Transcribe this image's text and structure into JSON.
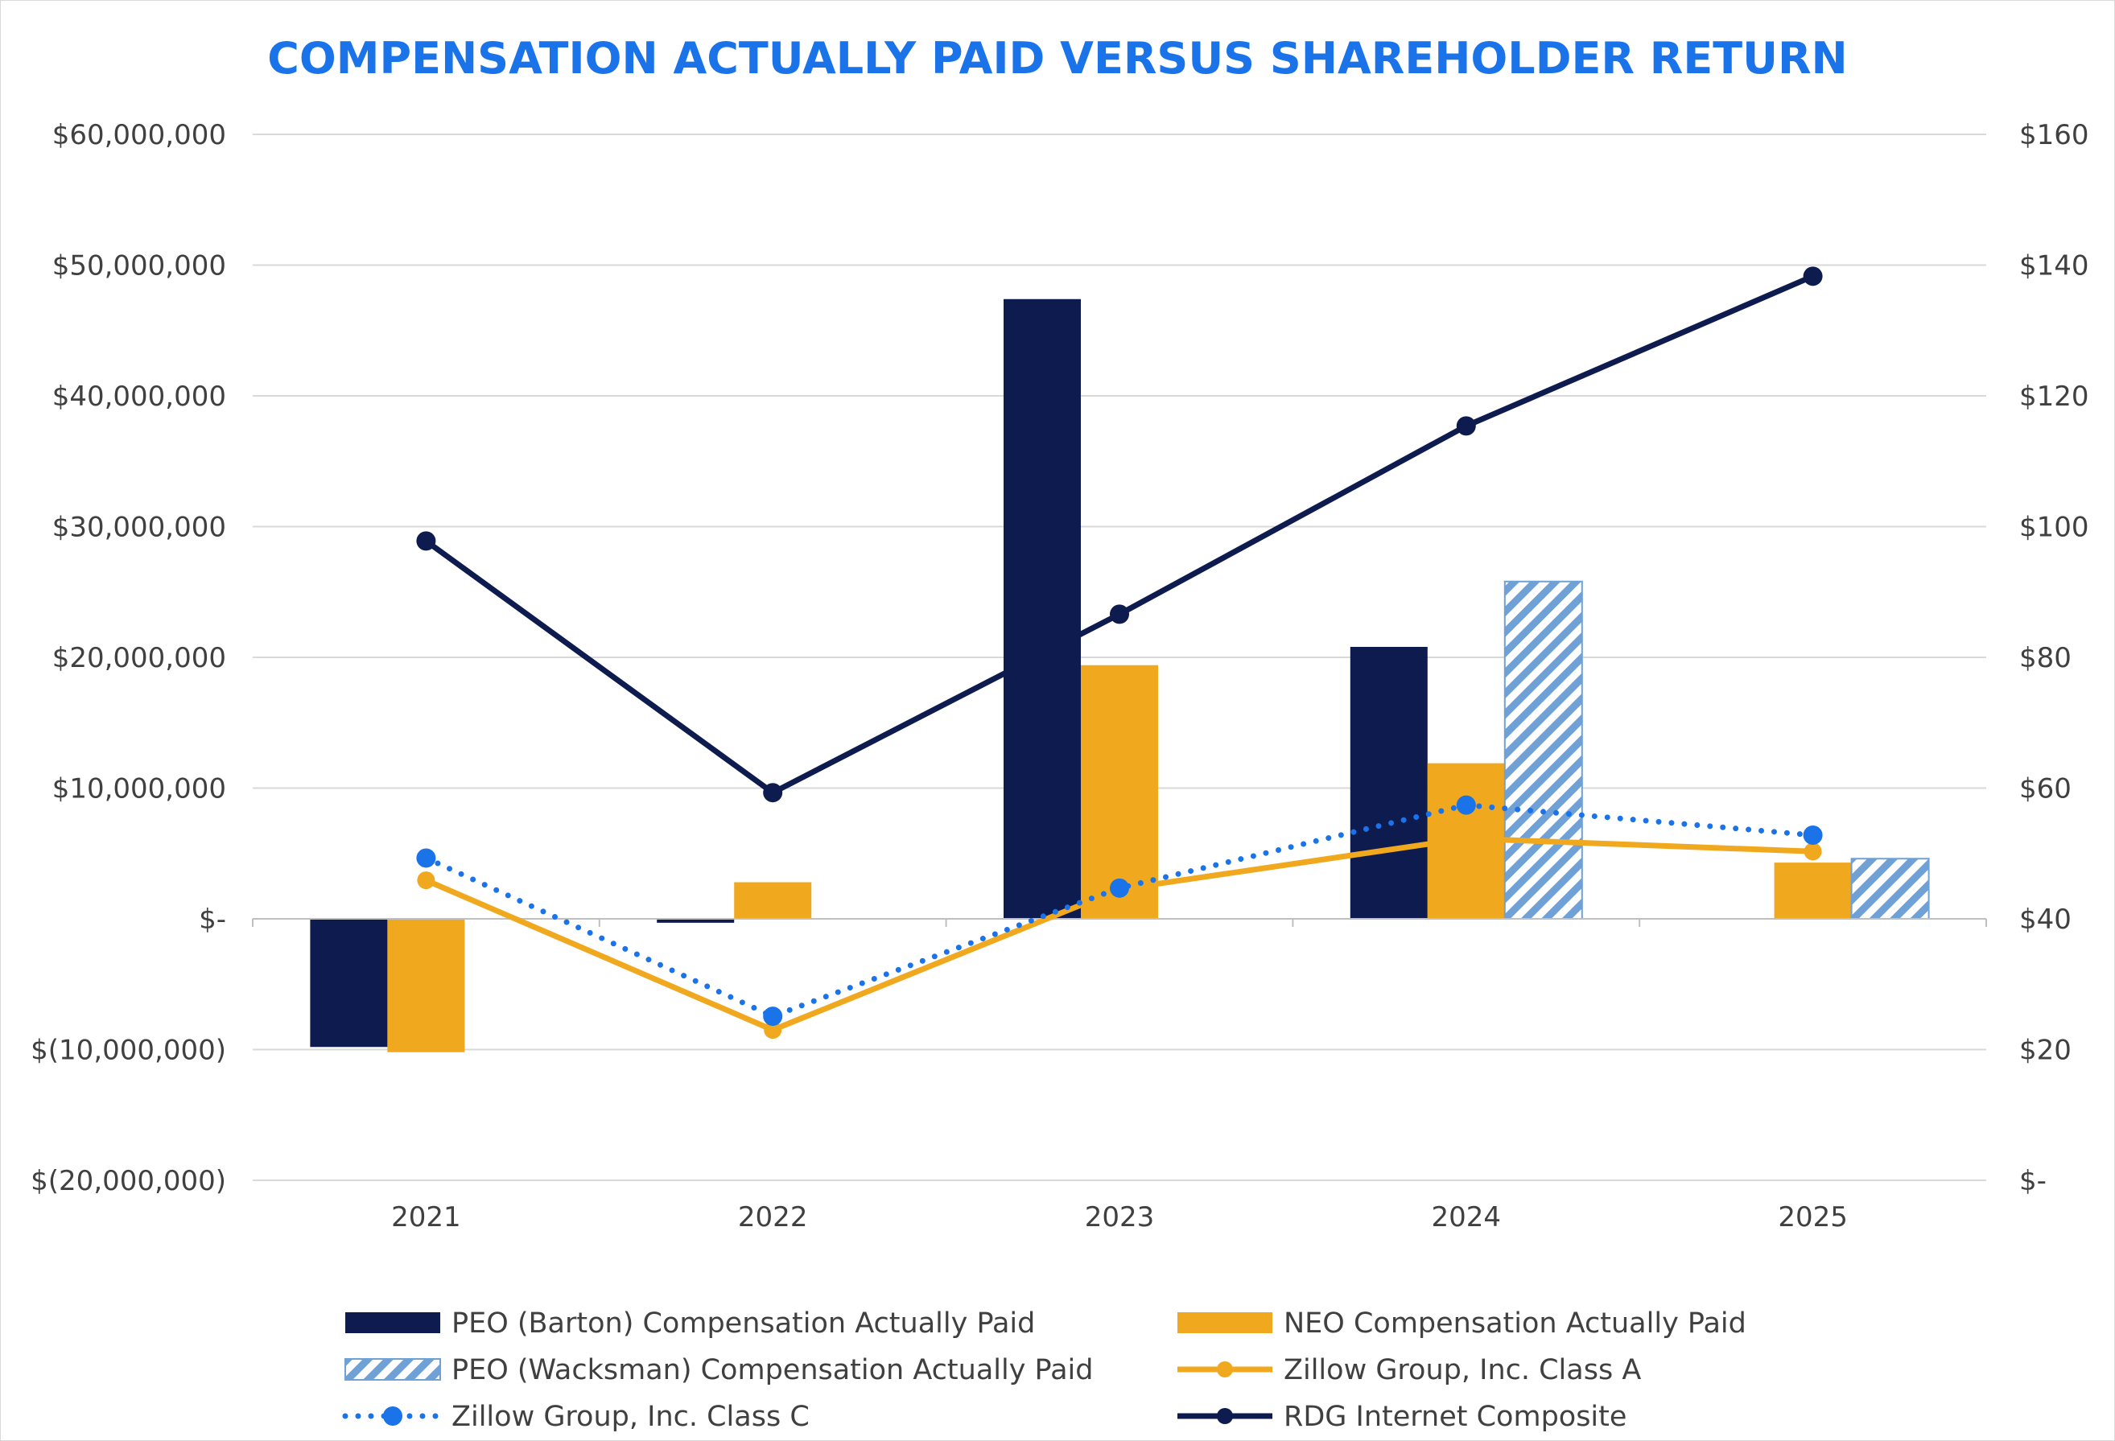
{
  "chart_data": {
    "type": "bar",
    "title": "COMPENSATION ACTUALLY PAID VERSUS SHAREHOLDER RETURN",
    "categories": [
      "2021",
      "2022",
      "2023",
      "2024",
      "2025"
    ],
    "left_axis": {
      "ylim": [
        -20000000,
        60000000
      ],
      "ticks": [
        60000000,
        50000000,
        40000000,
        30000000,
        20000000,
        10000000,
        0,
        -10000000,
        -20000000
      ],
      "tick_labels": [
        "$60,000,000",
        "$50,000,000",
        "$40,000,000",
        "$30,000,000",
        "$20,000,000",
        "$10,000,000",
        "$-",
        "$(10,000,000)",
        "$(20,000,000)"
      ]
    },
    "right_axis": {
      "ylim": [
        0,
        160
      ],
      "ticks": [
        160,
        140,
        120,
        100,
        80,
        60,
        40,
        20,
        0
      ],
      "tick_labels": [
        "$160",
        "$140",
        "$120",
        "$100",
        "$80",
        "$60",
        "$40",
        "$20",
        "$-"
      ]
    },
    "grid": "horizontal",
    "legend_position": "bottom",
    "bar_series": [
      {
        "name": "PEO (Barton) Compensation Actually Paid",
        "values": [
          -9800000,
          -300000,
          47400000,
          20800000,
          null
        ],
        "color": "#0d1b4f",
        "pattern": "solid"
      },
      {
        "name": "NEO Compensation Actually Paid",
        "values": [
          -10200000,
          2800000,
          19400000,
          11900000,
          4300000
        ],
        "color": "#f0a81e",
        "pattern": "solid"
      },
      {
        "name": "PEO (Wacksman) Compensation Actually Paid",
        "values": [
          null,
          null,
          null,
          25800000,
          4600000
        ],
        "color": "#6fa0d6",
        "pattern": "hatch"
      }
    ],
    "line_series": [
      {
        "name": "Zillow Group, Inc. Class A",
        "values": [
          45.9,
          23.0,
          44.5,
          52.3,
          50.3
        ],
        "color": "#f0a81e",
        "style": "solid"
      },
      {
        "name": "Zillow Group, Inc. Class C",
        "values": [
          49.3,
          25.1,
          44.7,
          57.4,
          52.8
        ],
        "color": "#1a73e8",
        "style": "dotted"
      },
      {
        "name": "RDG Internet Composite",
        "values": [
          97.8,
          59.3,
          86.6,
          115.4,
          138.3
        ],
        "color": "#0d1b4f",
        "style": "solid"
      }
    ],
    "legend": [
      {
        "label": "PEO (Barton) Compensation Actually Paid",
        "kind": "bar",
        "color": "#0d1b4f"
      },
      {
        "label": "NEO Compensation Actually Paid",
        "kind": "bar",
        "color": "#f0a81e"
      },
      {
        "label": "PEO (Wacksman) Compensation Actually Paid",
        "kind": "hatch",
        "color": "#6fa0d6"
      },
      {
        "label": "Zillow Group, Inc. Class A",
        "kind": "line",
        "color": "#f0a81e"
      },
      {
        "label": "Zillow Group, Inc. Class C",
        "kind": "dotted",
        "color": "#1a73e8"
      },
      {
        "label": "RDG Internet Composite",
        "kind": "line",
        "color": "#0d1b4f"
      }
    ],
    "colors": {
      "title": "#1a73e8",
      "grid": "#d9d9d9",
      "axis": "#bfbfbf",
      "text": "#404040"
    }
  }
}
